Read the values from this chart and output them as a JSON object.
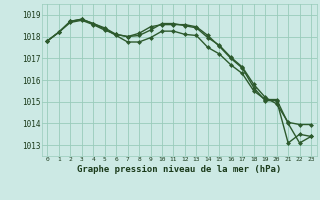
{
  "background_color": "#cce9e4",
  "grid_color": "#99ccbb",
  "line_color": "#2d5a2d",
  "marker": "D",
  "markersize": 2.5,
  "linewidth": 1.0,
  "ylim": [
    1012.5,
    1019.5
  ],
  "yticks": [
    1013,
    1014,
    1015,
    1016,
    1017,
    1018,
    1019
  ],
  "xlim": [
    -0.5,
    23.5
  ],
  "xticks": [
    0,
    1,
    2,
    3,
    4,
    5,
    6,
    7,
    8,
    9,
    10,
    11,
    12,
    13,
    14,
    15,
    16,
    17,
    18,
    19,
    20,
    21,
    22,
    23
  ],
  "xlabel": "Graphe pression niveau de la mer (hPa)",
  "series": [
    [
      1017.8,
      1018.2,
      1018.65,
      1018.75,
      1018.55,
      1018.3,
      1018.1,
      1018.0,
      1018.15,
      1018.45,
      1018.55,
      1018.55,
      1018.55,
      1018.45,
      1018.05,
      1017.55,
      1017.0,
      1016.55,
      1015.65,
      1015.05,
      1015.05,
      1013.1,
      1013.5,
      1013.4
    ],
    [
      1017.8,
      1018.2,
      1018.7,
      1018.8,
      1018.6,
      1018.35,
      1018.05,
      1017.75,
      1017.75,
      1017.95,
      1018.25,
      1018.25,
      1018.1,
      1018.05,
      1017.5,
      1017.2,
      1016.7,
      1016.3,
      1015.5,
      1015.1,
      1015.1,
      1014.0,
      1013.1,
      1013.4
    ],
    [
      1017.8,
      1018.2,
      1018.7,
      1018.8,
      1018.6,
      1018.4,
      1018.1,
      1018.0,
      1018.05,
      1018.3,
      1018.6,
      1018.6,
      1018.5,
      1018.4,
      1017.95,
      1017.6,
      1017.05,
      1016.6,
      1015.8,
      1015.2,
      1014.9,
      1014.05,
      1013.95,
      1013.95
    ]
  ]
}
